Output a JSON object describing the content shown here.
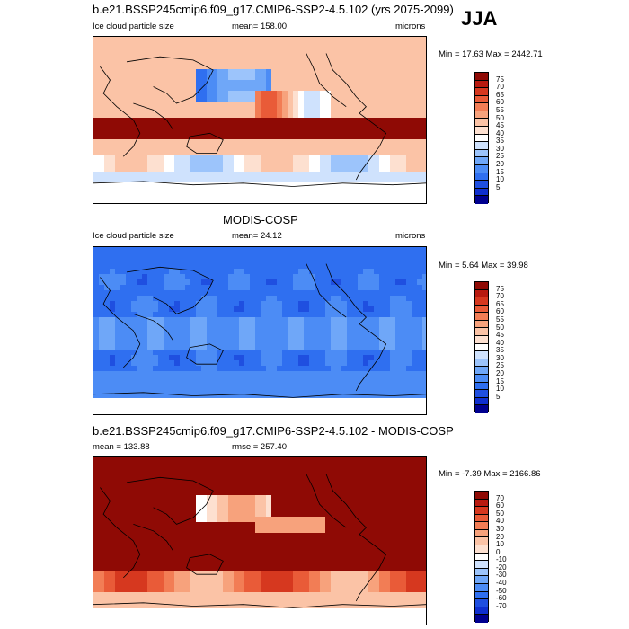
{
  "season": "JJA",
  "palettes": {
    "abs": [
      "#00008f",
      "#0f2fcf",
      "#1f4fe0",
      "#2f6ff0",
      "#4c8cf5",
      "#6fa7f8",
      "#9cc4fb",
      "#cfe2fd",
      "#ffffff",
      "#fde0d0",
      "#fbc3a6",
      "#f7a27c",
      "#f27d55",
      "#e95b38",
      "#d6381f",
      "#b81a10",
      "#8f0a05"
    ],
    "diff": [
      "#00008f",
      "#0f2fcf",
      "#1f4fe0",
      "#2f6ff0",
      "#4c8cf5",
      "#6fa7f8",
      "#9cc4fb",
      "#cfe2fd",
      "#ffffff",
      "#fde0d0",
      "#fbc3a6",
      "#f7a27c",
      "#f27d55",
      "#e95b38",
      "#d6381f",
      "#b81a10",
      "#8f0a05"
    ]
  },
  "panels": [
    {
      "title": "b.e21.BSSP245cmip6.f09_g17.CMIP6-SSP2-4.5.102 (yrs 2075-2099)",
      "left_label": "Ice cloud particle size",
      "center_label": "mean= 158.00",
      "units": "microns",
      "range_label": "Min =  17.63 Max = 2442.71",
      "levels": [
        "75",
        "70",
        "65",
        "60",
        "55",
        "50",
        "45",
        "40",
        "35",
        "30",
        "25",
        "20",
        "15",
        "10",
        "5"
      ],
      "palette": "abs",
      "style": "model"
    },
    {
      "title": "MODIS-COSP",
      "left_label": "Ice cloud particle size",
      "center_label": "mean=  24.12",
      "units": "microns",
      "range_label": "Min =   5.64 Max =  39.98",
      "levels": [
        "75",
        "70",
        "65",
        "60",
        "55",
        "50",
        "45",
        "40",
        "35",
        "30",
        "25",
        "20",
        "15",
        "10",
        "5"
      ],
      "palette": "abs",
      "style": "obs"
    },
    {
      "title": "b.e21.BSSP245cmip6.f09_g17.CMIP6-SSP2-4.5.102 - MODIS-COSP",
      "left_label": "mean = 133.88",
      "center_label": "rmse = 257.40",
      "units": "",
      "range_label": "Min =  -7.39 Max = 2166.86",
      "levels": [
        "70",
        "60",
        "50",
        "40",
        "30",
        "20",
        "10",
        "0",
        "-10",
        "-20",
        "-30",
        "-40",
        "-50",
        "-60",
        "-70"
      ],
      "palette": "diff",
      "style": "diff"
    }
  ],
  "chart_data": [
    {
      "type": "heatmap",
      "title": "b.e21.BSSP245cmip6.f09_g17.CMIP6-SSP2-4.5.102 (yrs 2075-2099)",
      "variable": "Ice cloud particle size",
      "units": "microns",
      "season": "JJA",
      "mean": 158.0,
      "min": 17.63,
      "max": 2442.71,
      "contour_levels": [
        5,
        10,
        15,
        20,
        25,
        30,
        35,
        40,
        45,
        50,
        55,
        60,
        65,
        70,
        75
      ]
    },
    {
      "type": "heatmap",
      "title": "MODIS-COSP",
      "variable": "Ice cloud particle size",
      "units": "microns",
      "season": "JJA",
      "mean": 24.12,
      "min": 5.64,
      "max": 39.98,
      "contour_levels": [
        5,
        10,
        15,
        20,
        25,
        30,
        35,
        40,
        45,
        50,
        55,
        60,
        65,
        70,
        75
      ]
    },
    {
      "type": "heatmap",
      "title": "b.e21.BSSP245cmip6.f09_g17.CMIP6-SSP2-4.5.102 - MODIS-COSP",
      "season": "JJA",
      "mean": 133.88,
      "rmse": 257.4,
      "min": -7.39,
      "max": 2166.86,
      "contour_levels": [
        -70,
        -60,
        -50,
        -40,
        -30,
        -20,
        -10,
        0,
        10,
        20,
        30,
        40,
        50,
        60,
        70
      ]
    }
  ]
}
